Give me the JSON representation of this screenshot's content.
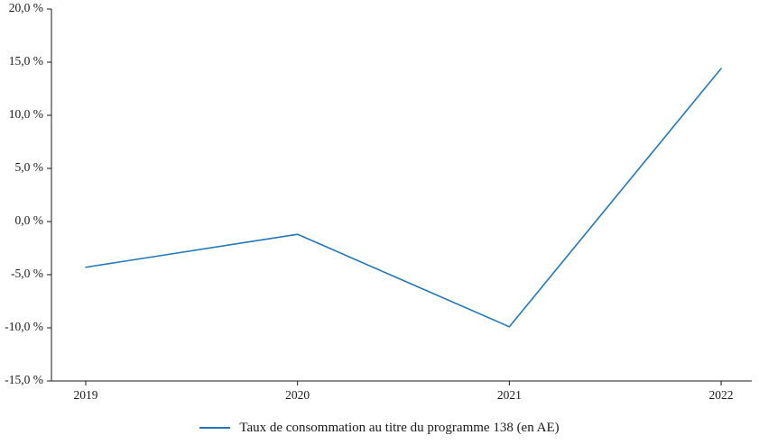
{
  "chart_data": {
    "type": "line",
    "x": [
      "2019",
      "2020",
      "2021",
      "2022"
    ],
    "series": [
      {
        "name": "Taux de consommation au titre du programme 138 (en AE)",
        "values": [
          -4.3,
          -1.2,
          -9.9,
          14.4
        ]
      }
    ],
    "title": "",
    "xlabel": "",
    "ylabel": "",
    "ylim": [
      -15,
      20
    ],
    "ytick_step": 5,
    "ytick_labels": [
      "20,0 %",
      "15,0 %",
      "10,0 %",
      "5,0 %",
      "0,0 %",
      "-5,0 %",
      "-10,0 %",
      "-15,0 %"
    ],
    "xtick_labels": [
      "2019",
      "2020",
      "2021",
      "2022"
    ],
    "grid": false,
    "legend_position": "bottom",
    "line_color": "#2277b8",
    "axis_color": "#1a1a1a",
    "background": "#ffffff"
  }
}
